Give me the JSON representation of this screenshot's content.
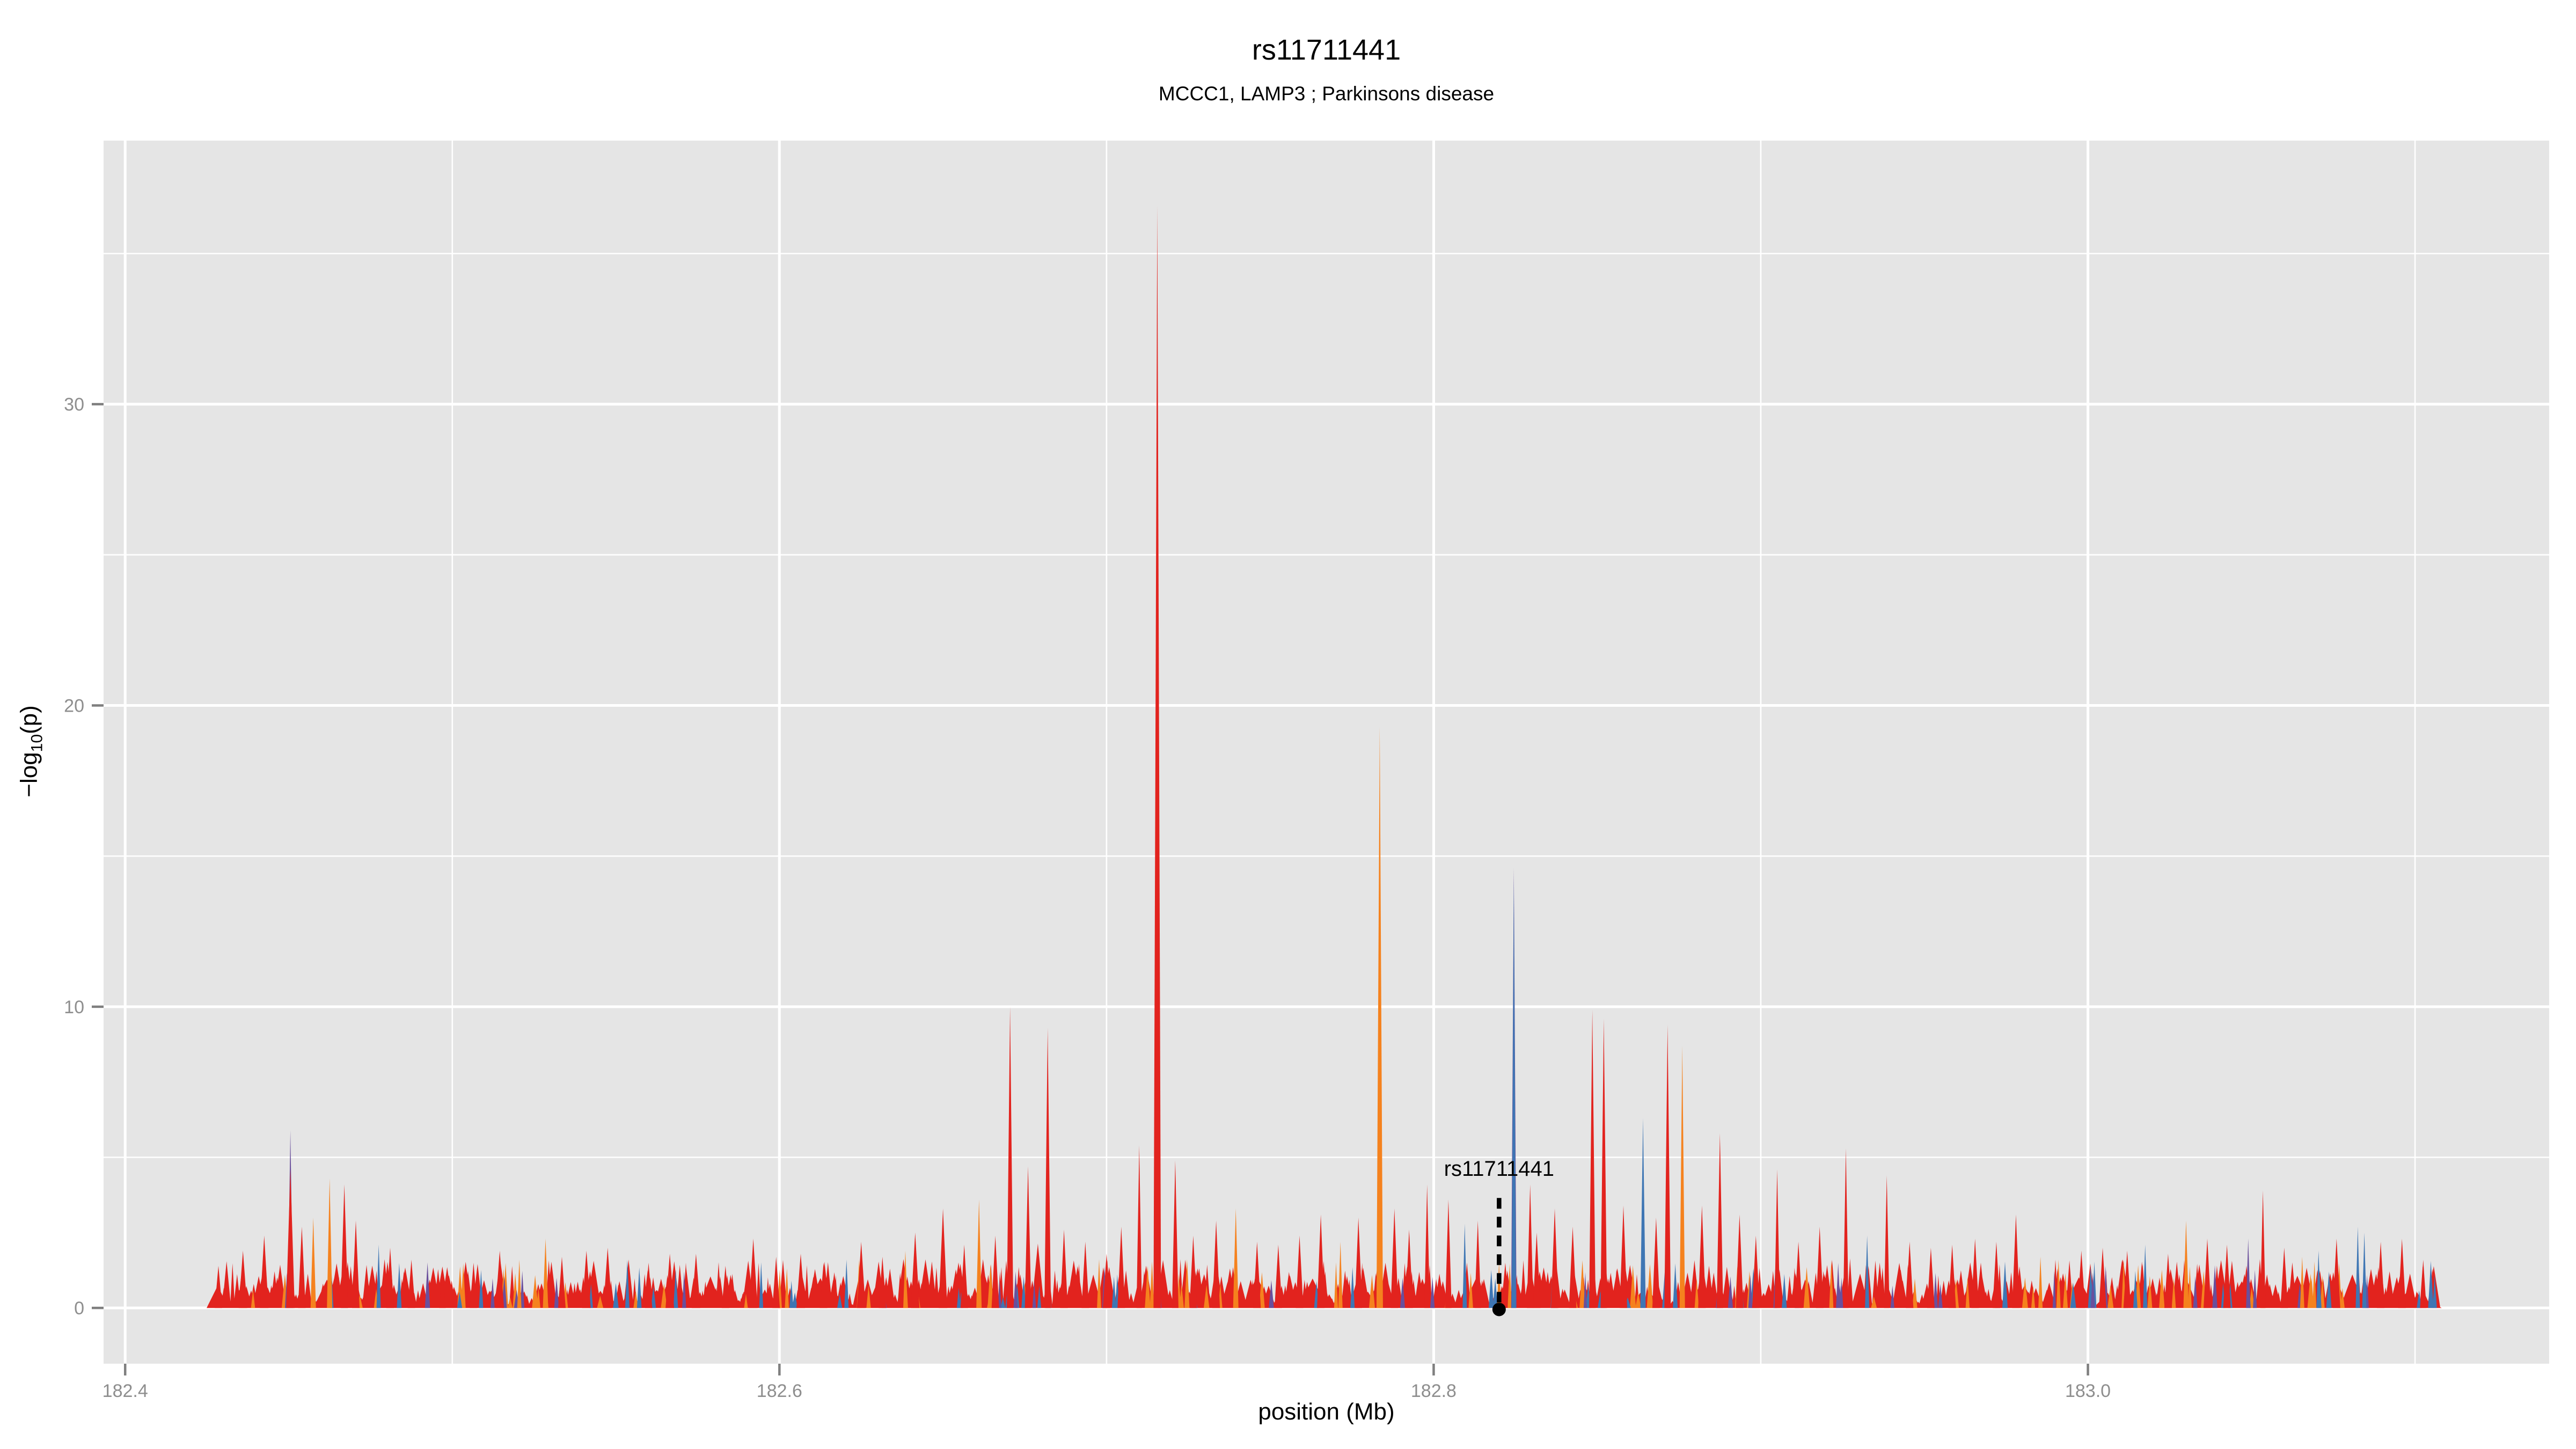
{
  "chart_data": {
    "type": "area",
    "title": "rs11711441",
    "subtitle": "MCCC1, LAMP3 ; Parkinsons disease",
    "xlabel": "position (Mb)",
    "ylabel": "-log10(p)",
    "ylabel_parts": {
      "pre": "−log",
      "sub": "10",
      "post": "(p)"
    },
    "xlim": [
      182.3934,
      183.141
    ],
    "ylim": [
      -1.85,
      38.75
    ],
    "x_ticks": [
      182.4,
      182.6,
      182.8,
      183.0
    ],
    "x_tick_labels": [
      "182.4",
      "182.6",
      "182.8",
      "183.0"
    ],
    "x_minor": [
      182.5,
      182.7,
      182.9,
      183.1
    ],
    "y_ticks": [
      0,
      10,
      20,
      30
    ],
    "y_tick_labels": [
      "0",
      "10",
      "20",
      "30"
    ],
    "y_minor": [
      5,
      15,
      25,
      35
    ],
    "grid": true,
    "legend": "none",
    "data_x_range": [
      182.428,
      183.106
    ],
    "max_peak": {
      "pos": 182.7155,
      "value": 36.6
    },
    "annotation": {
      "label": "rs11711441",
      "pos": 182.82,
      "value_at_dot": 0,
      "text_y": 5.0,
      "line_top": 3.65,
      "line_bottom": 0.18,
      "dot_y": -0.05
    },
    "colors": {
      "r": "#e2231e",
      "o": "#f5821e",
      "b": "#3e76b4",
      "p": "#6a4f9c",
      "panel_bg": "#e5e5e5",
      "grid": "#ffffff",
      "tick_label": "#8e8e8e",
      "tick_mark": "#7f7f7f",
      "text": "#000000"
    },
    "peaks": [
      [
        182.4285,
        1.4,
        "r",
        7
      ],
      [
        182.436,
        1.9,
        "r",
        8
      ],
      [
        182.4425,
        2.4,
        "r",
        8
      ],
      [
        182.4505,
        5.9,
        "p",
        5
      ],
      [
        182.4505,
        4.6,
        "r",
        8
      ],
      [
        182.454,
        2.7,
        "r",
        7
      ],
      [
        182.4575,
        3.0,
        "o",
        5
      ],
      [
        182.4625,
        4.3,
        "o",
        5
      ],
      [
        182.467,
        4.1,
        "r",
        7
      ],
      [
        182.4705,
        2.9,
        "r",
        7
      ],
      [
        182.4775,
        2.1,
        "b",
        4
      ],
      [
        182.481,
        2.0,
        "r",
        7
      ],
      [
        182.4875,
        1.6,
        "r",
        7
      ],
      [
        182.497,
        1.2,
        "r",
        6
      ],
      [
        182.5065,
        1.5,
        "r",
        7
      ],
      [
        182.5145,
        1.9,
        "r",
        8
      ],
      [
        182.5205,
        1.6,
        "o",
        4
      ],
      [
        182.5285,
        2.3,
        "o",
        5
      ],
      [
        182.5335,
        1.7,
        "r",
        7
      ],
      [
        182.541,
        1.9,
        "r",
        8
      ],
      [
        182.5475,
        2.0,
        "r",
        8
      ],
      [
        182.5535,
        1.6,
        "b",
        4
      ],
      [
        182.56,
        1.5,
        "r",
        7
      ],
      [
        182.5665,
        1.8,
        "r",
        8
      ],
      [
        182.5745,
        1.8,
        "r",
        8
      ],
      [
        182.5835,
        1.4,
        "r",
        7
      ],
      [
        182.592,
        2.3,
        "r",
        8
      ],
      [
        182.599,
        1.7,
        "r",
        7
      ],
      [
        182.6065,
        1.8,
        "r",
        8
      ],
      [
        182.6135,
        1.5,
        "r",
        7
      ],
      [
        182.6205,
        1.6,
        "b",
        4
      ],
      [
        182.625,
        2.2,
        "r",
        8
      ],
      [
        182.6315,
        1.7,
        "r",
        7
      ],
      [
        182.6385,
        1.9,
        "o",
        4
      ],
      [
        182.6415,
        2.5,
        "r",
        8
      ],
      [
        182.65,
        3.3,
        "r",
        8
      ],
      [
        182.6565,
        2.1,
        "r",
        7
      ],
      [
        182.661,
        3.6,
        "o",
        5
      ],
      [
        182.666,
        2.4,
        "r",
        7
      ],
      [
        182.6705,
        10.0,
        "r",
        6
      ],
      [
        182.676,
        4.7,
        "r",
        6
      ],
      [
        182.682,
        9.3,
        "r",
        6
      ],
      [
        182.687,
        2.6,
        "r",
        7
      ],
      [
        182.6935,
        2.2,
        "r",
        7
      ],
      [
        182.7,
        1.8,
        "r",
        7
      ],
      [
        182.7045,
        2.7,
        "r",
        7
      ],
      [
        182.71,
        5.4,
        "r",
        5
      ],
      [
        182.7155,
        36.6,
        "r",
        7
      ],
      [
        182.721,
        4.9,
        "r",
        6
      ],
      [
        182.7265,
        2.4,
        "r",
        7
      ],
      [
        182.7335,
        2.9,
        "r",
        7
      ],
      [
        182.7395,
        3.3,
        "o",
        5
      ],
      [
        182.746,
        2.2,
        "r",
        7
      ],
      [
        182.7525,
        2.1,
        "r",
        7
      ],
      [
        182.759,
        2.4,
        "r",
        7
      ],
      [
        182.7655,
        3.1,
        "r",
        7
      ],
      [
        182.7715,
        2.2,
        "o",
        4
      ],
      [
        182.777,
        3.0,
        "r",
        7
      ],
      [
        182.7835,
        19.3,
        "o",
        6
      ],
      [
        182.788,
        3.3,
        "r",
        7
      ],
      [
        182.7925,
        2.6,
        "r",
        7
      ],
      [
        182.798,
        4.1,
        "r",
        5
      ],
      [
        182.8045,
        3.6,
        "r",
        6
      ],
      [
        182.8095,
        2.8,
        "b",
        4
      ],
      [
        182.8135,
        2.9,
        "r",
        6
      ],
      [
        182.8245,
        14.6,
        "p",
        5
      ],
      [
        182.8245,
        14.2,
        "b",
        4
      ],
      [
        182.8295,
        4.1,
        "r",
        6
      ],
      [
        182.8315,
        2.5,
        "r",
        7
      ],
      [
        182.837,
        3.3,
        "r",
        7
      ],
      [
        182.8425,
        2.7,
        "r",
        7
      ],
      [
        182.8485,
        9.9,
        "r",
        6
      ],
      [
        182.852,
        9.6,
        "r",
        6
      ],
      [
        182.858,
        3.4,
        "r",
        7
      ],
      [
        182.864,
        6.3,
        "b",
        5
      ],
      [
        182.868,
        3.0,
        "r",
        7
      ],
      [
        182.8715,
        9.4,
        "r",
        6
      ],
      [
        182.876,
        8.7,
        "o",
        5
      ],
      [
        182.882,
        3.4,
        "r",
        7
      ],
      [
        182.8875,
        5.8,
        "r",
        6
      ],
      [
        182.8935,
        3.1,
        "r",
        7
      ],
      [
        182.8985,
        2.4,
        "r",
        7
      ],
      [
        182.905,
        4.6,
        "r",
        5
      ],
      [
        182.9115,
        2.2,
        "r",
        7
      ],
      [
        182.918,
        2.7,
        "r",
        7
      ],
      [
        182.926,
        5.3,
        "r",
        5
      ],
      [
        182.9325,
        2.4,
        "b",
        4
      ],
      [
        182.9385,
        4.4,
        "r",
        5
      ],
      [
        182.9455,
        2.2,
        "r",
        7
      ],
      [
        182.952,
        2.0,
        "r",
        7
      ],
      [
        182.9585,
        2.1,
        "r",
        7
      ],
      [
        182.9655,
        2.3,
        "r",
        7
      ],
      [
        182.972,
        2.2,
        "r",
        7
      ],
      [
        182.978,
        3.1,
        "r",
        7
      ],
      [
        182.9855,
        1.7,
        "o",
        4
      ],
      [
        182.991,
        1.6,
        "o",
        4
      ],
      [
        182.998,
        1.9,
        "r",
        7
      ],
      [
        183.0045,
        2.0,
        "r",
        7
      ],
      [
        183.012,
        1.9,
        "r",
        7
      ],
      [
        183.0175,
        2.1,
        "b",
        4
      ],
      [
        183.0245,
        1.8,
        "r",
        7
      ],
      [
        183.03,
        2.9,
        "o",
        5
      ],
      [
        183.0365,
        2.3,
        "r",
        7
      ],
      [
        183.0425,
        2.1,
        "r",
        7
      ],
      [
        183.049,
        2.3,
        "p",
        4
      ],
      [
        183.0535,
        3.9,
        "r",
        5
      ],
      [
        183.06,
        2.0,
        "r",
        7
      ],
      [
        183.0655,
        1.7,
        "o",
        4
      ],
      [
        183.0705,
        1.9,
        "b",
        4
      ],
      [
        183.076,
        2.3,
        "r",
        7
      ],
      [
        183.0825,
        2.7,
        "b",
        4
      ],
      [
        183.0845,
        2.5,
        "b",
        4
      ],
      [
        183.0895,
        2.2,
        "r",
        7
      ],
      [
        183.096,
        2.3,
        "r",
        7
      ],
      [
        183.1025,
        1.6,
        "r",
        6
      ],
      [
        183.106,
        1.1,
        "b",
        4
      ]
    ],
    "noise": {
      "seed": 1337,
      "count": 1500,
      "x_start": 182.4285,
      "x_end": 183.106,
      "base_height_min": 0.12,
      "height_power": 2.2,
      "height_scale": 1.5,
      "tall_fraction": 0.035,
      "tall_extra": 0.9,
      "mound_every": 37,
      "color_weights": {
        "r": 0.875,
        "o": 0.06,
        "b": 0.04,
        "p": 0.025
      }
    }
  }
}
